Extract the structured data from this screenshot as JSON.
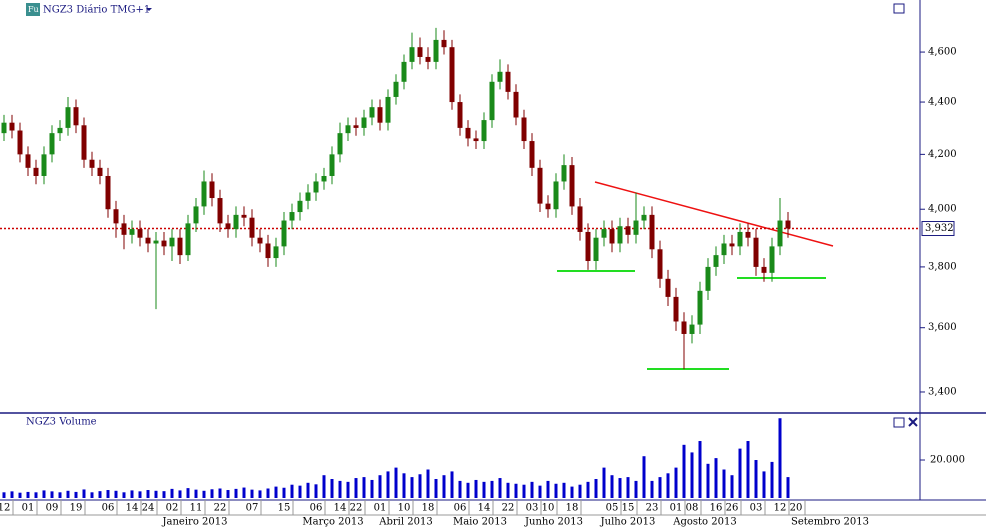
{
  "header": {
    "title": "NGZ3 Diário TMG+1",
    "icon": "Fu"
  },
  "chart_data": [
    {
      "type": "candlestick",
      "log_scale": true,
      "up_color": "#1a8a1a",
      "down_color": "#800000",
      "categories": [
        "12",
        null,
        null,
        "01",
        null,
        null,
        "09",
        null,
        null,
        "19",
        null,
        null,
        null,
        "06",
        null,
        null,
        "14",
        null,
        "24",
        null,
        null,
        "02",
        null,
        null,
        "11",
        null,
        null,
        "22",
        null,
        null,
        null,
        "07",
        null,
        null,
        null,
        "15",
        null,
        null,
        null,
        "06",
        null,
        null,
        "14",
        null,
        "22",
        null,
        null,
        "01",
        null,
        null,
        "10",
        null,
        null,
        "18",
        null,
        null,
        null,
        "06",
        null,
        null,
        "14",
        null,
        null,
        "22",
        null,
        null,
        "03",
        null,
        "10",
        null,
        null,
        "18",
        null,
        null,
        null,
        null,
        "05",
        null,
        "15",
        null,
        null,
        "23",
        null,
        null,
        "01",
        null,
        "08",
        null,
        null,
        "16",
        null,
        "26",
        null,
        null,
        "03",
        null,
        null,
        "12",
        null,
        "20"
      ],
      "open": [
        4280,
        4320,
        4290,
        4200,
        4150,
        4120,
        4200,
        4280,
        4300,
        4380,
        4310,
        4180,
        4150,
        4120,
        4000,
        3950,
        3910,
        3930,
        3900,
        3880,
        3890,
        3870,
        3900,
        3840,
        3950,
        4010,
        4100,
        4040,
        3950,
        3930,
        3980,
        3970,
        3900,
        3880,
        3830,
        3870,
        3960,
        3990,
        4030,
        4060,
        4100,
        4120,
        4200,
        4280,
        4310,
        4300,
        4340,
        4380,
        4320,
        4420,
        4480,
        4560,
        4620,
        4580,
        4560,
        4650,
        4620,
        4400,
        4300,
        4260,
        4250,
        4330,
        4480,
        4520,
        4440,
        4340,
        4250,
        4150,
        4020,
        4000,
        4100,
        4160,
        4010,
        3920,
        3820,
        3900,
        3930,
        3880,
        3940,
        3910,
        3960,
        3980,
        3860,
        3760,
        3700,
        3620,
        3580,
        3610,
        3720,
        3800,
        3840,
        3880,
        3870,
        3920,
        3900,
        3800,
        3780,
        3870,
        3960,
        null
      ],
      "high": [
        4350,
        4350,
        4320,
        4230,
        4180,
        4230,
        4310,
        4330,
        4420,
        4410,
        4340,
        4210,
        4180,
        4150,
        4030,
        3980,
        3960,
        3960,
        3930,
        3920,
        3920,
        3930,
        3930,
        3980,
        4040,
        4140,
        4130,
        4070,
        3980,
        4010,
        4010,
        4000,
        3930,
        3910,
        3900,
        3990,
        4020,
        4060,
        4090,
        4130,
        4150,
        4230,
        4320,
        4340,
        4340,
        4370,
        4410,
        4410,
        4450,
        4510,
        4590,
        4680,
        4660,
        4620,
        4700,
        4690,
        4650,
        4430,
        4330,
        4290,
        4360,
        4510,
        4570,
        4550,
        4470,
        4370,
        4280,
        4180,
        4050,
        4130,
        4200,
        4190,
        4040,
        3950,
        3930,
        3960,
        3960,
        3970,
        3970,
        4060,
        4010,
        4010,
        3890,
        3790,
        3730,
        3650,
        3640,
        3750,
        3830,
        3870,
        3910,
        3910,
        3950,
        3950,
        3930,
        3830,
        3900,
        4040,
        3990,
        null
      ],
      "low": [
        4250,
        4260,
        4170,
        4120,
        4090,
        4090,
        4170,
        4250,
        4270,
        4280,
        4150,
        4120,
        4090,
        3970,
        3900,
        3860,
        3880,
        3870,
        3850,
        3660,
        3840,
        3820,
        3810,
        3820,
        3920,
        3980,
        4010,
        3920,
        3900,
        3900,
        3940,
        3870,
        3850,
        3800,
        3800,
        3840,
        3930,
        3960,
        4000,
        4030,
        4070,
        4090,
        4170,
        4250,
        4270,
        4270,
        4310,
        4290,
        4290,
        4390,
        4450,
        4530,
        4550,
        4530,
        4530,
        4590,
        4370,
        4270,
        4230,
        4220,
        4220,
        4300,
        4450,
        4410,
        4310,
        4220,
        4120,
        3990,
        3970,
        3970,
        4070,
        3980,
        3890,
        3790,
        3790,
        3870,
        3850,
        3850,
        3880,
        3880,
        3930,
        3830,
        3730,
        3670,
        3590,
        3470,
        3550,
        3580,
        3690,
        3770,
        3810,
        3840,
        3840,
        3870,
        3770,
        3750,
        3750,
        3840,
        3900,
        null
      ],
      "close": [
        4320,
        4290,
        4200,
        4150,
        4120,
        4200,
        4280,
        4300,
        4380,
        4310,
        4180,
        4150,
        4120,
        4000,
        3950,
        3910,
        3930,
        3900,
        3880,
        3890,
        3870,
        3900,
        3840,
        3950,
        4010,
        4100,
        4040,
        3950,
        3930,
        3980,
        3970,
        3900,
        3880,
        3830,
        3870,
        3960,
        3990,
        4030,
        4060,
        4100,
        4120,
        4200,
        4280,
        4310,
        4300,
        4340,
        4380,
        4320,
        4420,
        4480,
        4560,
        4620,
        4580,
        4560,
        4650,
        4620,
        4400,
        4300,
        4260,
        4250,
        4330,
        4480,
        4520,
        4440,
        4340,
        4250,
        4150,
        4020,
        4000,
        4100,
        4160,
        4010,
        3920,
        3820,
        3900,
        3930,
        3880,
        3940,
        3910,
        3960,
        3980,
        3860,
        3760,
        3700,
        3620,
        3580,
        3610,
        3720,
        3800,
        3840,
        3880,
        3870,
        3920,
        3900,
        3800,
        3780,
        3870,
        3960,
        3932,
        null
      ],
      "ylim": [
        3340,
        4818
      ],
      "yticks": [
        {
          "value": 3400,
          "label": "3,400"
        },
        {
          "value": 3600,
          "label": "3,600"
        },
        {
          "value": 3800,
          "label": "3,800"
        },
        {
          "value": 4000,
          "label": "4,000"
        },
        {
          "value": 4200,
          "label": "4,200"
        },
        {
          "value": 4400,
          "label": "4,400"
        },
        {
          "value": 4600,
          "label": "4,600"
        }
      ],
      "last_price": {
        "value": 3932,
        "label": "3,932",
        "color": "#cc0000"
      },
      "months": [
        "Janeiro 2013",
        "Março 2013",
        "Abril 2013",
        "Maio 2013",
        "Junho 2013",
        "Julho 2013",
        "Agosto 2013",
        "Setembro 2013"
      ]
    },
    {
      "type": "volume",
      "title": "NGZ3 Volume",
      "color": "#0000cc",
      "values": [
        3000,
        3500,
        2800,
        3200,
        3000,
        4000,
        3500,
        3000,
        3800,
        3200,
        4500,
        3000,
        3600,
        4200,
        3800,
        3000,
        4000,
        3500,
        4200,
        3800,
        3600,
        4800,
        4000,
        5200,
        4400,
        3800,
        4600,
        5000,
        4200,
        4800,
        5500,
        4400,
        4000,
        5000,
        6000,
        5400,
        7000,
        6500,
        8000,
        7200,
        12000,
        10000,
        9000,
        8500,
        10500,
        11000,
        9500,
        12000,
        14000,
        16000,
        13000,
        11000,
        12500,
        15000,
        10000,
        12000,
        14000,
        9000,
        8000,
        9500,
        8500,
        9000,
        10500,
        8000,
        7500,
        7000,
        8500,
        6500,
        9000,
        7500,
        8000,
        6000,
        7000,
        8500,
        10000,
        16000,
        12000,
        10500,
        11000,
        9000,
        22000,
        9000,
        11000,
        13000,
        16000,
        28000,
        24000,
        30000,
        18000,
        21000,
        15000,
        12000,
        26000,
        30000,
        20000,
        14000,
        19000,
        42000,
        11000,
        null
      ],
      "ylim": [
        0,
        43700
      ],
      "yticks": [
        {
          "value": 20000,
          "label": "20.000"
        }
      ]
    }
  ]
}
